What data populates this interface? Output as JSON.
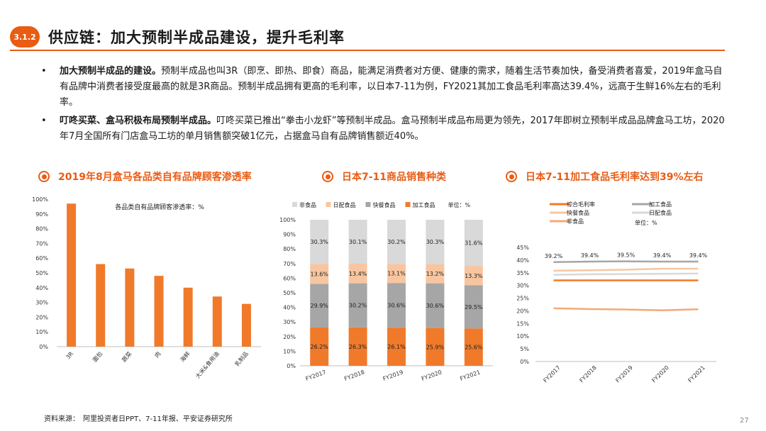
{
  "header": {
    "section": "3.1.2",
    "title": "供应链：加大预制半成品建设，提升毛利率"
  },
  "bullets": [
    {
      "lead": "加大预制半成品的建设。",
      "text": "预制半成品也叫3R（即烹、即热、即食）商品，能满足消费者对方便、健康的需求，随着生活节奏加快，备受消费者喜爱，2019年盒马自有品牌中消费者接受度最高的就是3R商品。预制半成品拥有更高的毛利率，以日本7-11为例，FY2021其加工食品毛利率高达39.4%，远高于生鲜16%左右的毛利率。"
    },
    {
      "lead": "叮咚买菜、盒马积极布局预制半成品。",
      "text": "叮咚买菜已推出“拳击小龙虾”等预制半成品。盒马预制半成品布局更为领先，2017年即树立预制半成品品牌盒马工坊，2020年7月全国所有门店盒马工坊的单月销售额突破1亿元，占据盒马自有品牌销售额近40%。"
    }
  ],
  "chart_titles": {
    "chart1": "2019年8月盒马各品类自有品牌顾客渗透率",
    "chart2": "日本7-11商品销售种类",
    "chart3": "日本7-11加工食品毛利率达到39%左右"
  },
  "chart_data": [
    {
      "type": "bar",
      "title": "各品类自有品牌顾客渗透率：%",
      "categories": [
        "3R",
        "面包",
        "蔬菜",
        "肉",
        "海鲜",
        "大米&食用油",
        "乳制品"
      ],
      "values": [
        97,
        56,
        53,
        48,
        40,
        34,
        29
      ],
      "ylim": [
        0,
        100
      ],
      "yticks": [
        "0%",
        "10%",
        "20%",
        "30%",
        "40%",
        "50%",
        "60%",
        "70%",
        "80%",
        "90%",
        "100%"
      ],
      "color": "#f07a2a"
    },
    {
      "type": "bar",
      "stacked": true,
      "categories": [
        "FY2017",
        "FY2018",
        "FY2019",
        "FY2020",
        "FY2021"
      ],
      "unit_label": "单位：%",
      "ylim": [
        0,
        100
      ],
      "yticks": [
        "0%",
        "10%",
        "20%",
        "30%",
        "40%",
        "50%",
        "60%",
        "70%",
        "80%",
        "90%",
        "100%"
      ],
      "legend": [
        "非食品",
        "日配食品",
        "快餐食品",
        "加工食品"
      ],
      "series": [
        {
          "name": "加工食品",
          "values": [
            26.2,
            26.3,
            26.1,
            25.9,
            25.6
          ],
          "labels": [
            "26.2%",
            "26.3%",
            "26.1%",
            "25.9%",
            "25.6%"
          ],
          "color": "#f07a2a"
        },
        {
          "name": "快餐食品",
          "values": [
            29.9,
            30.2,
            30.6,
            30.6,
            29.5
          ],
          "labels": [
            "29.9%",
            "30.2%",
            "30.6%",
            "30.6%",
            "29.5%"
          ],
          "color": "#a6a6a6"
        },
        {
          "name": "日配食品",
          "values": [
            13.6,
            13.4,
            13.1,
            13.2,
            13.3
          ],
          "labels": [
            "13.6%",
            "13.4%",
            "13.1%",
            "13.2%",
            "13.3%"
          ],
          "color": "#f7c6a1"
        },
        {
          "name": "非食品",
          "values": [
            30.3,
            30.1,
            30.2,
            30.3,
            31.6
          ],
          "labels": [
            "30.3%",
            "30.1%",
            "30.2%",
            "30.3%",
            "31.6%"
          ],
          "color": "#d9d9d9"
        }
      ]
    },
    {
      "type": "line",
      "categories": [
        "FY2017",
        "FY2018",
        "FY2019",
        "FY2020",
        "FY2021"
      ],
      "unit_label": "单位：%",
      "ylim": [
        0,
        45
      ],
      "yticks": [
        "0%",
        "5%",
        "10%",
        "15%",
        "20%",
        "25%",
        "30%",
        "35%",
        "40%",
        "45%"
      ],
      "legend": [
        "综合毛利率",
        "加工食品",
        "快餐食品",
        "日配食品",
        "非食品"
      ],
      "series": [
        {
          "name": "加工食品",
          "values": [
            39.2,
            39.4,
            39.5,
            39.4,
            39.4
          ],
          "labels": [
            "39.2%",
            "39.4%",
            "39.5%",
            "39.4%",
            "39.4%"
          ],
          "color": "#a6a6a6"
        },
        {
          "name": "快餐食品",
          "values": [
            35.8,
            36.0,
            36.2,
            36.6,
            36.6
          ],
          "color": "#f7c6a1"
        },
        {
          "name": "日配食品",
          "values": [
            34.2,
            34.4,
            34.5,
            34.6,
            34.7
          ],
          "color": "#d9d9d9"
        },
        {
          "name": "综合毛利率",
          "values": [
            32.0,
            32.0,
            32.0,
            32.0,
            32.0
          ],
          "color": "#f07a2a"
        },
        {
          "name": "非食品",
          "values": [
            21.0,
            20.7,
            20.5,
            20.2,
            20.6
          ],
          "color": "#f5a874"
        }
      ]
    }
  ],
  "source": "资料来源：　阿里投资者日PPT、7-11年报、平安证券研究所",
  "page_number": "27"
}
